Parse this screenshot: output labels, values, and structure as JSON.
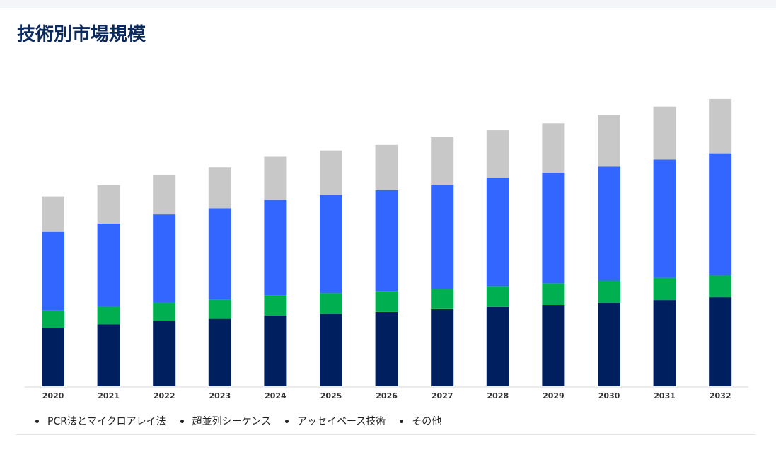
{
  "page": {
    "title": "技術別市場規模"
  },
  "chart_data": {
    "type": "bar",
    "stacked": true,
    "title": "技術別市場規模",
    "xlabel": "",
    "ylabel": "",
    "y_axis_visible": false,
    "grid": false,
    "legend_placement": "bottom-left",
    "ylim": [
      0,
      420
    ],
    "categories": [
      "2020",
      "2021",
      "2022",
      "2023",
      "2024",
      "2025",
      "2026",
      "2027",
      "2028",
      "2029",
      "2030",
      "2031",
      "2032"
    ],
    "series": [
      {
        "name": "PCR法とマイクロアレイ法",
        "color": "#001f5f",
        "values": [
          84,
          89,
          94,
          97,
          102,
          104,
          107,
          111,
          114,
          117,
          120,
          124,
          128
        ]
      },
      {
        "name": "超並列シーケンス",
        "color": "#00b050",
        "values": [
          25,
          26,
          27,
          28,
          29,
          30,
          30,
          29,
          30,
          31,
          32,
          32,
          32
        ]
      },
      {
        "name": "アッセイベース技術",
        "color": "#3366ff",
        "values": [
          113,
          119,
          126,
          131,
          137,
          141,
          145,
          150,
          155,
          159,
          164,
          170,
          175
        ]
      },
      {
        "name": "その他",
        "color": "#c8c8c8",
        "values": [
          51,
          55,
          57,
          59,
          62,
          64,
          65,
          68,
          69,
          71,
          74,
          76,
          78
        ]
      }
    ]
  }
}
